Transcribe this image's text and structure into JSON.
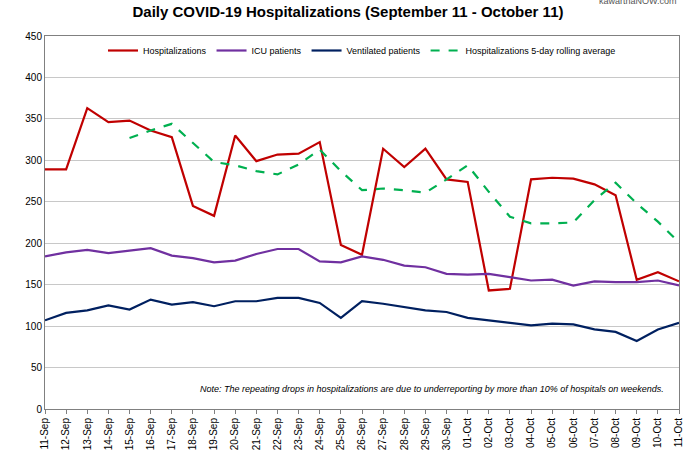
{
  "chart_data": {
    "type": "line",
    "title": "Daily COVID-19 Hospitalizations (September 11 - October 11)",
    "categories": [
      "11-Sep",
      "12-Sep",
      "13-Sep",
      "14-Sep",
      "15-Sep",
      "16-Sep",
      "17-Sep",
      "18-Sep",
      "19-Sep",
      "20-Sep",
      "21-Sep",
      "22-Sep",
      "23-Sep",
      "24-Sep",
      "25-Sep",
      "26-Sep",
      "27-Sep",
      "28-Sep",
      "29-Sep",
      "30-Sep",
      "01-Oct",
      "02-Oct",
      "03-Oct",
      "04-Oct",
      "05-Oct",
      "06-Oct",
      "07-Oct",
      "08-Oct",
      "09-Oct",
      "10-Oct",
      "11-Oct"
    ],
    "series": [
      {
        "name": "Hospitalizations",
        "color": "#c00000",
        "line_style": "solid",
        "values": [
          289,
          289,
          363,
          346,
          348,
          336,
          328,
          245,
          233,
          330,
          299,
          307,
          308,
          322,
          198,
          186,
          314,
          292,
          314,
          277,
          274,
          143,
          145,
          277,
          279,
          278,
          271,
          258,
          156,
          165,
          154
        ]
      },
      {
        "name": "ICU patients",
        "color": "#7030a0",
        "line_style": "solid",
        "values": [
          184,
          189,
          192,
          188,
          191,
          194,
          185,
          182,
          177,
          179,
          187,
          193,
          193,
          178,
          177,
          184,
          180,
          173,
          171,
          163,
          162,
          163,
          159,
          155,
          156,
          149,
          154,
          153,
          153,
          155,
          149
        ]
      },
      {
        "name": "Ventilated patients",
        "color": "#002060",
        "line_style": "solid",
        "values": [
          107,
          116,
          119,
          125,
          120,
          132,
          126,
          129,
          124,
          130,
          130,
          134,
          134,
          128,
          110,
          130,
          127,
          123,
          119,
          117,
          110,
          107,
          104,
          101,
          103,
          102,
          96,
          93,
          82,
          96,
          104
        ]
      },
      {
        "name": "Hospitalizations 5-day rolling average",
        "color": "#00b050",
        "line_style": "dashed",
        "values": [
          null,
          null,
          null,
          null,
          327,
          336,
          344,
          321,
          298,
          294,
          287,
          283,
          295,
          313,
          287,
          264,
          266,
          264,
          261,
          277,
          294,
          262,
          232,
          224,
          224,
          225,
          252,
          273,
          248,
          226,
          201
        ]
      }
    ],
    "ylim": [
      0,
      450
    ],
    "yticks": [
      0,
      50,
      100,
      150,
      200,
      250,
      300,
      350,
      400,
      450
    ],
    "grid": true,
    "legend": "top",
    "annotations": [
      "Note: The repeating drops in hospitalizations are due to underreporting by more than 10% of hospitals on weekends.",
      "kawarthaNOW.com"
    ]
  }
}
